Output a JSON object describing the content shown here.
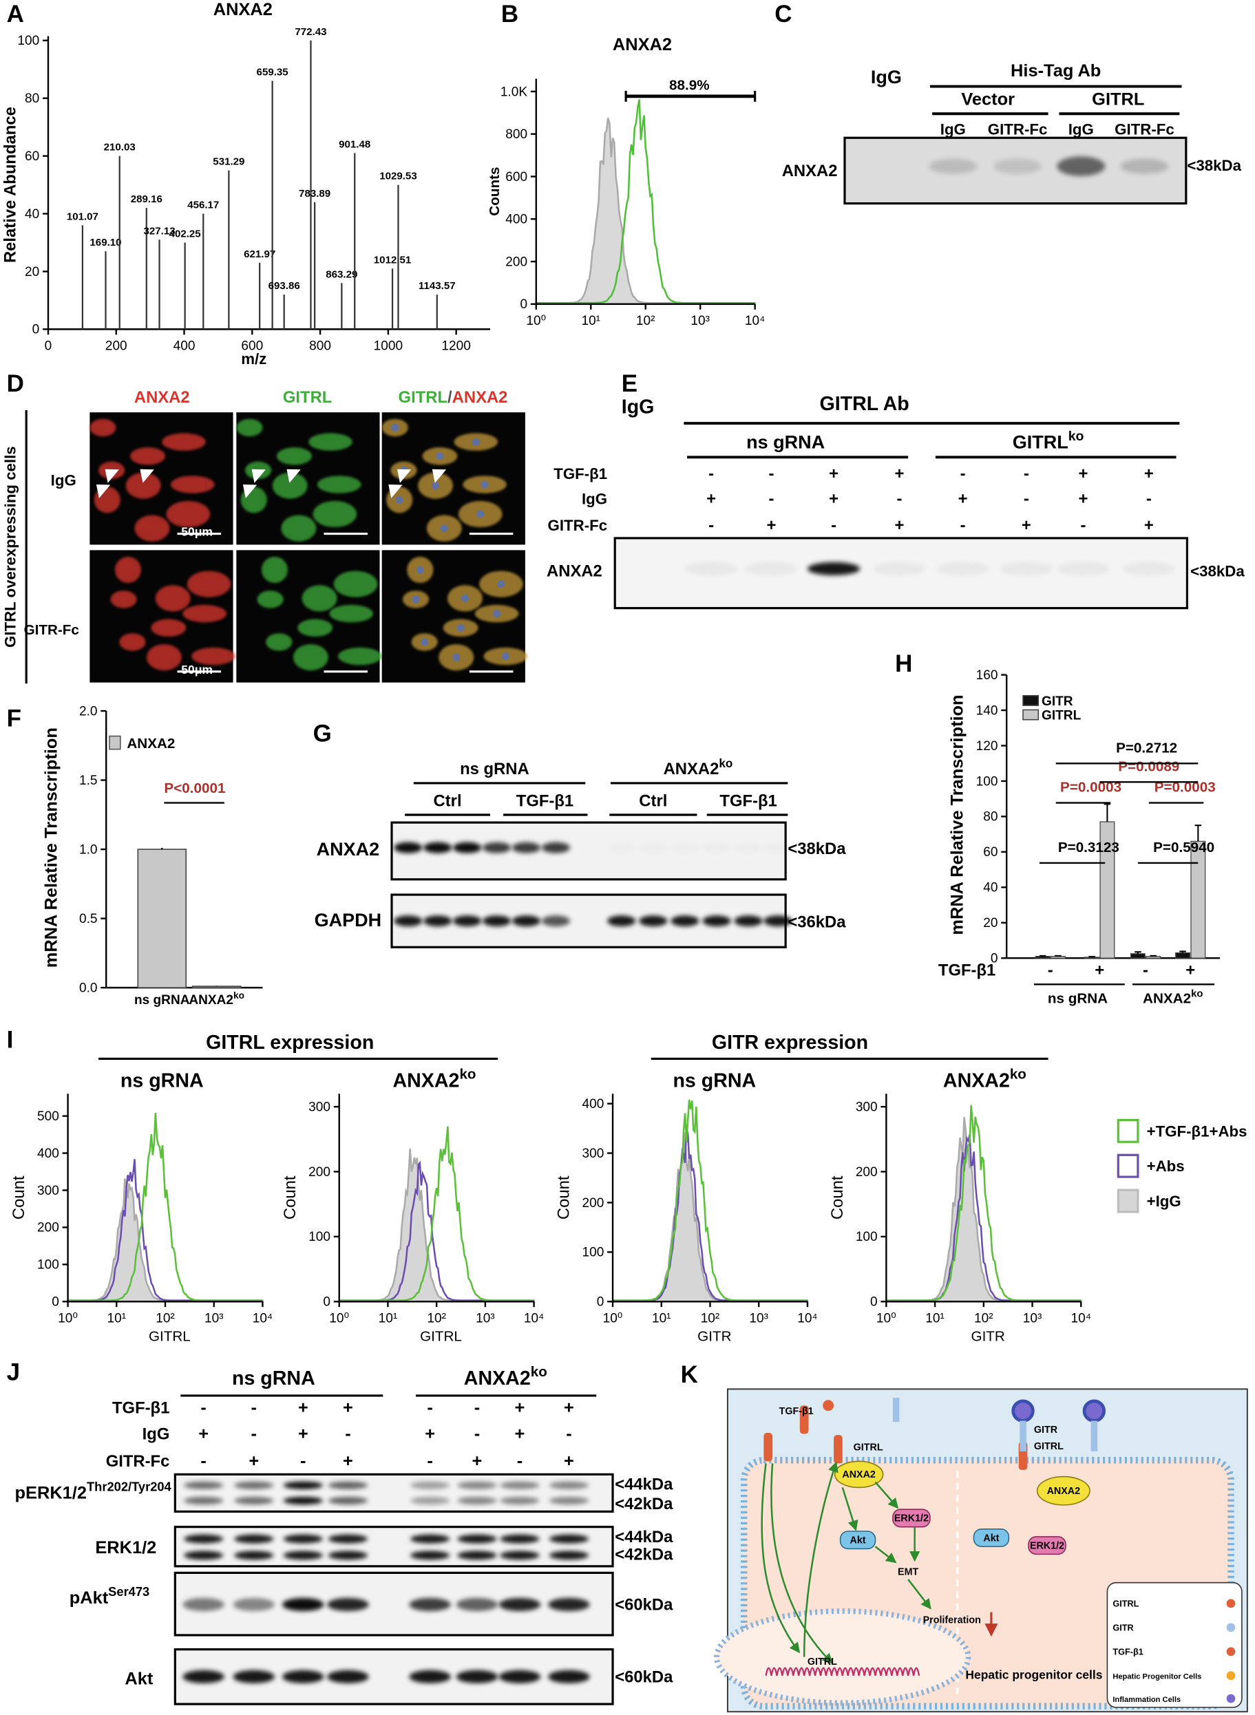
{
  "panel_a": {
    "letter": "A",
    "title": "ANXA2",
    "x_label": "m/z",
    "y_label": "Relative Abundance",
    "xlim": [
      0,
      1300
    ],
    "xticks": [
      0,
      200,
      400,
      600,
      800,
      1000,
      1200
    ],
    "ylim": [
      0,
      100
    ],
    "yticks": [
      0,
      20,
      40,
      60,
      80,
      100
    ],
    "peaks_x": [
      101.07,
      169.1,
      210.03,
      289.16,
      327.13,
      402.25,
      456.17,
      531.29,
      621.97,
      659.35,
      693.86,
      772.43,
      783.89,
      863.29,
      901.48,
      1012.51,
      1029.53,
      1143.57
    ],
    "peak_labels": [
      "101.07",
      "169.10",
      "210.03",
      "289.16",
      "327.13",
      "402.25",
      "456.17",
      "531.29",
      "621.97",
      "659.35",
      "693.86",
      "772.43",
      "783.89",
      "863.29",
      "901.48",
      "1012.51",
      "1029.53",
      "1143.57"
    ],
    "peaks_y": [
      36,
      27,
      60,
      42,
      31,
      30,
      40,
      55,
      23,
      86,
      12,
      100,
      44,
      16,
      61,
      21,
      50,
      12
    ]
  },
  "panel_b": {
    "letter": "B",
    "title": "ANXA2",
    "y_label": "Counts",
    "gate_label": "88.9%",
    "ylim": [
      0,
      1060
    ],
    "yticks": [
      0,
      200,
      400,
      600,
      800,
      {
        "value": 1000,
        "label": "1.0K"
      }
    ],
    "xlim": [
      1,
      10000
    ],
    "log_x": true,
    "xticks": [
      {
        "value": 1,
        "label": "10⁰"
      },
      {
        "value": 10,
        "label": "10¹"
      },
      {
        "value": 100,
        "label": "10²"
      },
      {
        "value": 1000,
        "label": "10³"
      },
      {
        "value": 10000,
        "label": "10⁴"
      }
    ]
  },
  "panel_c": {
    "letter": "C",
    "control": "IgG",
    "antibody": "His-Tag Ab",
    "groups": [
      "Vector",
      "GITRL"
    ],
    "lanes": [
      "IgG",
      "GITR-Fc",
      "IgG",
      "GITR-Fc"
    ],
    "row_label": "ANXA2",
    "marker": "<38kDa"
  },
  "panel_d": {
    "letter": "D",
    "columns": [
      "ANXA2",
      "GITRL"
    ],
    "merge_parts": [
      "GITRL",
      "/",
      "ANXA2"
    ],
    "rows": [
      "IgG",
      "GITR-Fc"
    ],
    "side_label": "GITRL overexpressing cells",
    "scale_bars": [
      "50μm",
      "50μm"
    ]
  },
  "panel_e": {
    "letter": "E",
    "control": "IgG",
    "antibody": "GITRL Ab",
    "groups": [
      {
        "text": "ns gRNA"
      },
      {
        "text": "GITRL",
        "sup": "ko"
      }
    ],
    "conditions": [
      {
        "label": "TGF-β1",
        "signs": [
          "-",
          "-",
          "+",
          "+",
          "-",
          "-",
          "+",
          "+"
        ]
      },
      {
        "label": "IgG",
        "signs": [
          "+",
          "-",
          "+",
          "-",
          "+",
          "-",
          "+",
          "-"
        ]
      },
      {
        "label": "GITR-Fc",
        "signs": [
          "-",
          "+",
          "-",
          "+",
          "-",
          "+",
          "-",
          "+"
        ]
      }
    ],
    "row_label": "ANXA2",
    "marker": "<38kDa"
  },
  "panel_f": {
    "letter": "F",
    "y_label": "mRNA Relative Transcription",
    "legend": "ANXA2",
    "color": "#c8c8c8",
    "categories": [
      {
        "text": "ns gRNA"
      },
      {
        "text": "ANXA2",
        "sup": "ko"
      }
    ],
    "values": [
      1.0,
      0.01
    ],
    "errors": [
      0.01,
      0.003
    ],
    "ylim": [
      0,
      2
    ],
    "yticks": [
      {
        "value": 0,
        "label": "0.0"
      },
      0.5,
      {
        "value": 1,
        "label": "1.0"
      },
      1.5,
      {
        "value": 2,
        "label": "2.0"
      }
    ],
    "comparison": {
      "label": "P<0.0001",
      "color": "#a8322d"
    }
  },
  "panel_g": {
    "letter": "G",
    "groups": [
      {
        "text": "ns gRNA"
      },
      {
        "text": "ANXA2",
        "sup": "ko"
      }
    ],
    "subgroups": [
      "Ctrl",
      "TGF-β1",
      "Ctrl",
      "TGF-β1"
    ],
    "rows": [
      {
        "label": "ANXA2",
        "marker": "<38kDa"
      },
      {
        "label": "GAPDH",
        "marker": "<36kDa"
      }
    ]
  },
  "panel_h": {
    "letter": "H",
    "y_label": "mRNA Relative Transcription",
    "ylim": [
      0,
      160
    ],
    "yticks": [
      0,
      20,
      40,
      60,
      80,
      100,
      120,
      140,
      160
    ],
    "series": [
      {
        "name": "GITR",
        "color": "#111111",
        "values": [
          1,
          0.5,
          2.5,
          3
        ],
        "errors": [
          0.3,
          0.3,
          1,
          0.8
        ]
      },
      {
        "name": "GITRL",
        "color": "#c8c8c8",
        "values": [
          1,
          77,
          1,
          66
        ],
        "errors": [
          0.3,
          10,
          0.3,
          9
        ]
      }
    ],
    "condition_label": "TGF-β1",
    "condition_signs": [
      "-",
      "+",
      "-",
      "+"
    ],
    "groups": [
      {
        "text": "ns gRNA"
      },
      {
        "text": "ANXA2",
        "sup": "ko"
      }
    ],
    "comparisons": [
      {
        "label": "P=0.3123",
        "color": "#000000"
      },
      {
        "label": "P=0.5940",
        "color": "#000000"
      },
      {
        "label": "P=0.0003",
        "color": "#a8322d"
      },
      {
        "label": "P=0.0003",
        "color": "#a8322d"
      },
      {
        "label": "P=0.0089",
        "color": "#a8322d"
      },
      {
        "label": "P=0.2712",
        "color": "#000000"
      }
    ]
  },
  "panel_i": {
    "letter": "I",
    "titles": [
      "GITRL expression",
      "GITR expression"
    ],
    "plots": [
      {
        "subtitle": {
          "text": "ns gRNA"
        },
        "y_label": "Count",
        "x_label": "GITRL",
        "ylim": [
          0,
          560
        ],
        "yticks": [
          0,
          100,
          200,
          300,
          400,
          500
        ],
        "xlim": [
          1,
          10000
        ],
        "xticks": [
          {
            "value": 1,
            "label": "10⁰"
          },
          {
            "value": 10,
            "label": "10¹"
          },
          {
            "value": 100,
            "label": "10²"
          },
          {
            "value": 1000,
            "label": "10³"
          },
          {
            "value": 10000,
            "label": "10⁴"
          }
        ]
      },
      {
        "subtitle": {
          "text": "ANXA2",
          "sup": "ko"
        },
        "y_label": "Count",
        "x_label": "GITRL",
        "ylim": [
          0,
          320
        ],
        "yticks": [
          0,
          100,
          200,
          300
        ],
        "xlim": [
          1,
          10000
        ],
        "xticks": [
          {
            "value": 1,
            "label": "10⁰"
          },
          {
            "value": 10,
            "label": "10¹"
          },
          {
            "value": 100,
            "label": "10²"
          },
          {
            "value": 1000,
            "label": "10³"
          },
          {
            "value": 10000,
            "label": "10⁴"
          }
        ]
      },
      {
        "subtitle": {
          "text": "ns gRNA"
        },
        "y_label": "Count",
        "x_label": "GITR",
        "ylim": [
          0,
          420
        ],
        "yticks": [
          0,
          100,
          200,
          300,
          400
        ],
        "xlim": [
          1,
          10000
        ],
        "xticks": [
          {
            "value": 1,
            "label": "10⁰"
          },
          {
            "value": 10,
            "label": "10¹"
          },
          {
            "value": 100,
            "label": "10²"
          },
          {
            "value": 1000,
            "label": "10³"
          },
          {
            "value": 10000,
            "label": "10⁴"
          }
        ]
      },
      {
        "subtitle": {
          "text": "ANXA2",
          "sup": "ko"
        },
        "y_label": "Count",
        "x_label": "GITR",
        "ylim": [
          0,
          320
        ],
        "yticks": [
          0,
          100,
          200,
          300
        ],
        "xlim": [
          1,
          10000
        ],
        "xticks": [
          {
            "value": 1,
            "label": "10⁰"
          },
          {
            "value": 10,
            "label": "10¹"
          },
          {
            "value": 100,
            "label": "10²"
          },
          {
            "value": 1000,
            "label": "10³"
          },
          {
            "value": 10000,
            "label": "10⁴"
          }
        ]
      }
    ],
    "legend": [
      {
        "name": "+TGF-β1+Abs",
        "color": "#5cbf3a"
      },
      {
        "name": "+Abs",
        "color": "#6a4fb0"
      },
      {
        "name": "+IgG",
        "color": "#bdbdbd"
      }
    ]
  },
  "panel_j": {
    "letter": "J",
    "groups": [
      {
        "text": "ns gRNA"
      },
      {
        "text": "ANXA2",
        "sup": "ko"
      }
    ],
    "conditions": [
      {
        "label": "TGF-β1",
        "signs": [
          "-",
          "-",
          "+",
          "+",
          "-",
          "-",
          "+",
          "+"
        ]
      },
      {
        "label": "IgG",
        "signs": [
          "+",
          "-",
          "+",
          "-",
          "+",
          "-",
          "+",
          "-"
        ]
      },
      {
        "label": "GITR-Fc",
        "signs": [
          "-",
          "+",
          "-",
          "+",
          "-",
          "+",
          "-",
          "+"
        ]
      }
    ],
    "rows": [
      {
        "label": {
          "text": "pERK1/2",
          "sup": "Thr202/Tyr204"
        },
        "markers": [
          "<44kDa",
          "<42kDa"
        ]
      },
      {
        "label": {
          "text": "ERK1/2"
        },
        "markers": [
          "<44kDa",
          "<42kDa"
        ]
      },
      {
        "label": {
          "text": "pAkt",
          "sup": "Ser473"
        },
        "markers": [
          "<60kDa"
        ]
      },
      {
        "label": {
          "text": "Akt"
        },
        "markers": [
          "<60kDa"
        ]
      }
    ]
  },
  "panel_k": {
    "letter": "K",
    "labels": [
      "TGF-β1",
      "GITRL",
      "ANXA2",
      "ERK1/2",
      "Akt",
      "EMT",
      "Proliferation",
      "GITRL",
      "GITR",
      "GITRL",
      "ANXA2",
      "Akt",
      "ERK1/2",
      "Hepatic progenitor cells"
    ],
    "legend": [
      "GITRL",
      "GITR",
      "TGF-β1",
      "Hepatic Progenitor Cells",
      "Inflammation Cells"
    ]
  }
}
